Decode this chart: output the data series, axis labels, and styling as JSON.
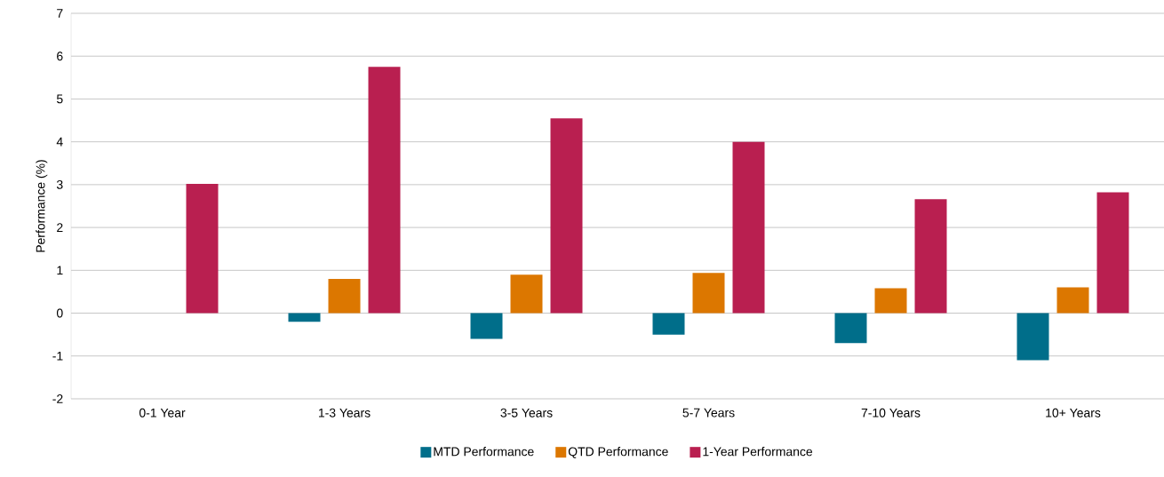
{
  "chart_data": {
    "type": "bar",
    "ylabel": "Performance (%)",
    "categories": [
      "0-1 Year",
      "1-3 Years",
      "3-5 Years",
      "5-7 Years",
      "7-10 Years",
      "10+ Years"
    ],
    "series": [
      {
        "name": "MTD Performance",
        "color": "#006e8a",
        "values": [
          null,
          -0.2,
          -0.6,
          -0.5,
          -0.7,
          -1.1
        ]
      },
      {
        "name": "QTD Performance",
        "color": "#dc7700",
        "values": [
          null,
          0.8,
          0.9,
          0.94,
          0.58,
          0.6
        ]
      },
      {
        "name": "1-Year Performance",
        "color": "#b91f50",
        "values": [
          3.02,
          5.75,
          4.55,
          4.0,
          2.66,
          2.82
        ]
      }
    ],
    "ylim": [
      -2,
      7
    ],
    "yticks": [
      -2,
      -1,
      0,
      1,
      2,
      3,
      4,
      5,
      6,
      7
    ],
    "grid": "y",
    "legend": "bottom"
  }
}
